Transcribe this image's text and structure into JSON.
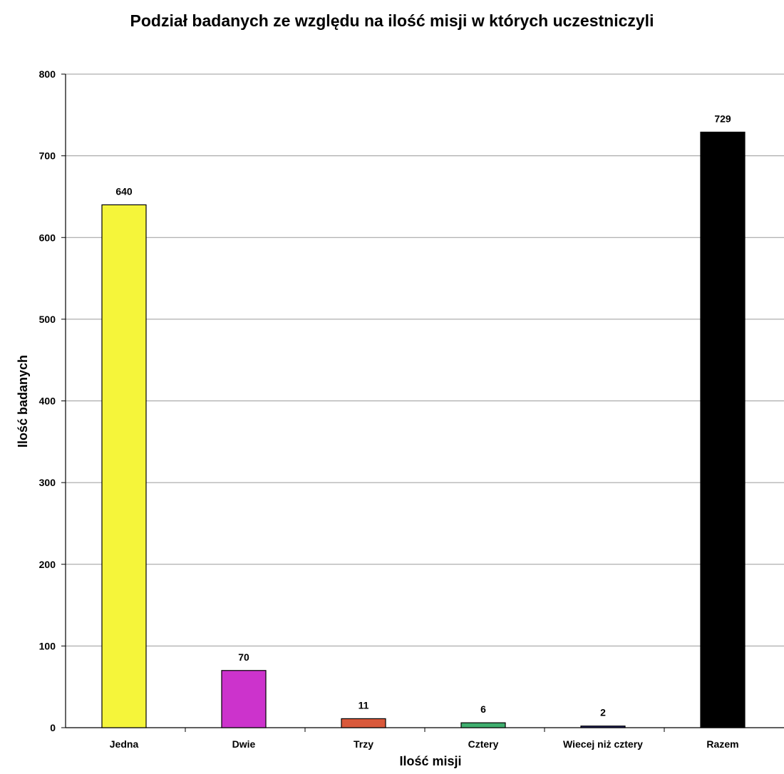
{
  "chart_data": {
    "type": "bar",
    "title": "Podział badanych ze względu na ilość misji w których uczestniczyli",
    "xlabel": "Ilość misji",
    "ylabel": "Ilość badanych",
    "categories": [
      "Jedna",
      "Dwie",
      "Trzy",
      "Cztery",
      "Wiecej niż cztery",
      "Razem"
    ],
    "values": [
      640,
      70,
      11,
      6,
      2,
      729
    ],
    "data_labels": [
      "640",
      "70",
      "11",
      "6",
      "2",
      "729"
    ],
    "colors": [
      "#f5f53a",
      "#cc33cc",
      "#d9583a",
      "#3fae6e",
      "#2a2a70",
      "#000000"
    ],
    "ylim": [
      0,
      800
    ],
    "yticks": [
      0,
      100,
      200,
      300,
      400,
      500,
      600,
      700,
      800
    ],
    "grid": true,
    "legend": "none"
  }
}
